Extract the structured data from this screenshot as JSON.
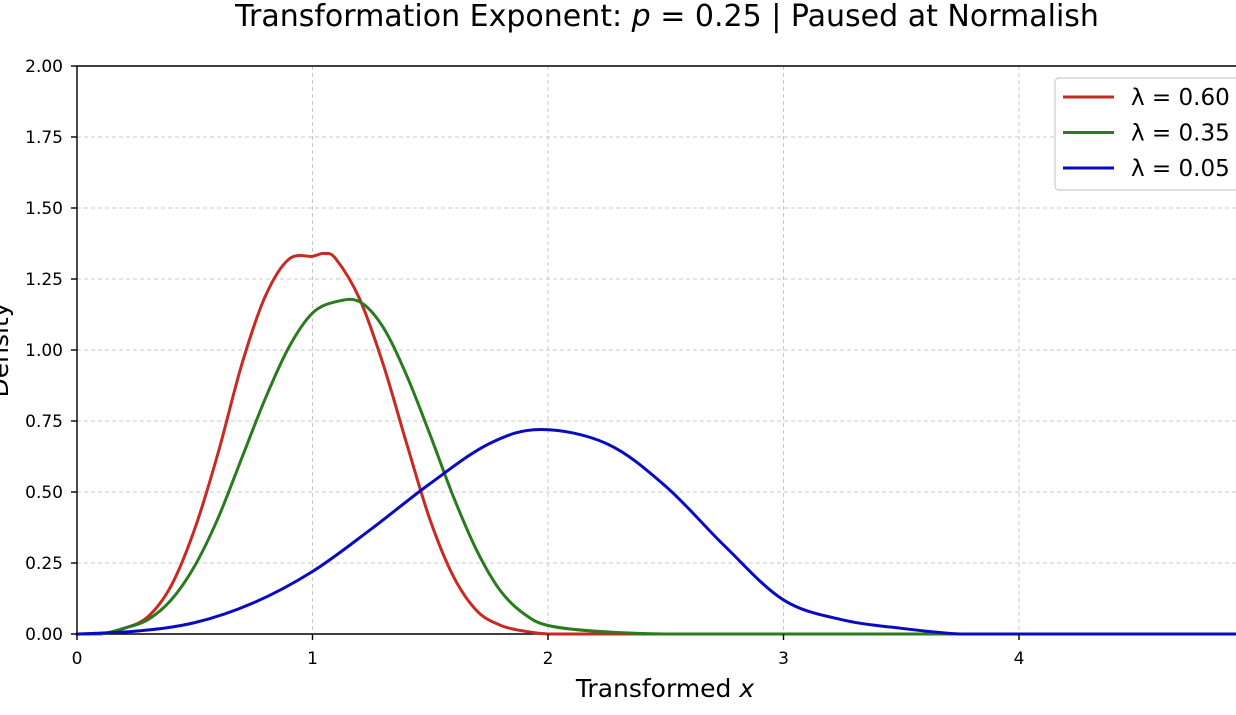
{
  "chart_data": {
    "type": "line",
    "title": "Transformation Exponent: p = 0.25 | Paused at Normalish",
    "title_parts": {
      "prefix": "Transformation Exponent: ",
      "var": "p",
      "suffix": " = 0.25 | Paused at Normalish"
    },
    "xlabel": "Transformed x",
    "xlabel_parts": {
      "text": "Transformed ",
      "var": "x"
    },
    "ylabel": "Density",
    "xlim": [
      0,
      5
    ],
    "ylim": [
      0,
      2
    ],
    "x_ticks": [
      0,
      1,
      2,
      3,
      4
    ],
    "x_tick_labels": [
      "0",
      "1",
      "2",
      "3",
      "4"
    ],
    "y_ticks": [
      0,
      0.25,
      0.5,
      0.75,
      1.0,
      1.25,
      1.5,
      1.75,
      2.0
    ],
    "y_tick_labels": [
      "0.00",
      "0.25",
      "0.50",
      "0.75",
      "1.00",
      "1.25",
      "1.50",
      "1.75",
      "2.00"
    ],
    "grid": true,
    "legend_position": "top-right",
    "series": [
      {
        "name": "λ = 0.60",
        "color": "#c62a22",
        "x": [
          0,
          0.1,
          0.2,
          0.3,
          0.4,
          0.5,
          0.6,
          0.7,
          0.8,
          0.9,
          1.0,
          1.05,
          1.1,
          1.2,
          1.3,
          1.4,
          1.5,
          1.6,
          1.7,
          1.8,
          1.9,
          2.0,
          2.2,
          2.5,
          3.0,
          4.0,
          5.0
        ],
        "y": [
          0.0,
          0.0,
          0.02,
          0.06,
          0.17,
          0.37,
          0.64,
          0.95,
          1.19,
          1.32,
          1.33,
          1.34,
          1.32,
          1.18,
          0.95,
          0.67,
          0.4,
          0.2,
          0.08,
          0.03,
          0.01,
          0.0,
          0.0,
          0.0,
          0.0,
          0.0,
          0.0
        ]
      },
      {
        "name": "λ = 0.35",
        "color": "#2a7a1e",
        "x": [
          0,
          0.1,
          0.2,
          0.3,
          0.4,
          0.5,
          0.6,
          0.7,
          0.8,
          0.9,
          1.0,
          1.1,
          1.2,
          1.3,
          1.4,
          1.5,
          1.6,
          1.7,
          1.8,
          1.9,
          2.0,
          2.2,
          2.5,
          3.0,
          4.0,
          5.0
        ],
        "y": [
          0.0,
          0.0,
          0.02,
          0.05,
          0.12,
          0.24,
          0.41,
          0.62,
          0.83,
          1.01,
          1.13,
          1.17,
          1.17,
          1.08,
          0.91,
          0.7,
          0.48,
          0.29,
          0.15,
          0.07,
          0.03,
          0.01,
          0.0,
          0.0,
          0.0,
          0.0
        ]
      },
      {
        "name": "λ = 0.05",
        "color": "#0a0ac2",
        "x": [
          0,
          0.25,
          0.5,
          0.75,
          1.0,
          1.25,
          1.5,
          1.75,
          1.97,
          2.25,
          2.5,
          2.75,
          3.0,
          3.25,
          3.5,
          3.75,
          4.0,
          4.5,
          5.0
        ],
        "y": [
          0.0,
          0.01,
          0.04,
          0.11,
          0.22,
          0.37,
          0.53,
          0.67,
          0.72,
          0.67,
          0.52,
          0.31,
          0.12,
          0.05,
          0.02,
          0.0,
          0.0,
          0.0,
          0.0
        ]
      }
    ]
  }
}
